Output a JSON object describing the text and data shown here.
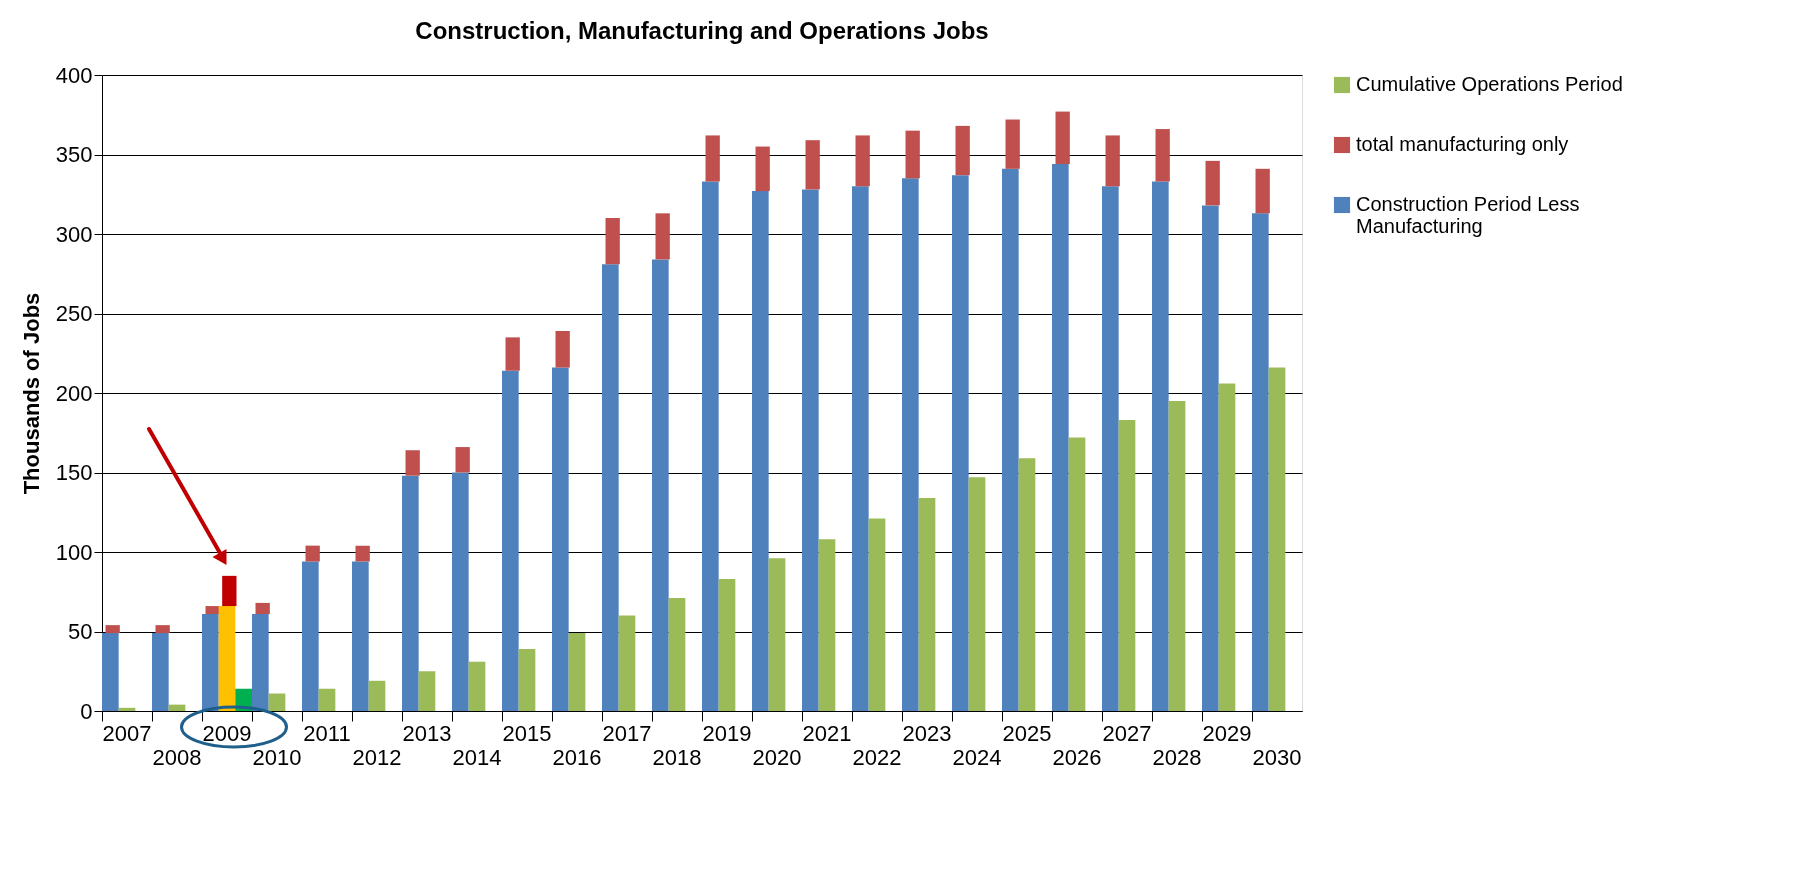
{
  "chart_data": {
    "type": "bar",
    "title": "Construction, Manufacturing and Operations Jobs",
    "ylabel": "Thousands of Jobs",
    "categories": [
      "2007",
      "2008",
      "2009",
      "2010",
      "2011",
      "2012",
      "2013",
      "2014",
      "2015",
      "2016",
      "2017",
      "2018",
      "2019",
      "2020",
      "2021",
      "2022",
      "2023",
      "2024",
      "2025",
      "2026",
      "2027",
      "2028",
      "2029",
      "2030"
    ],
    "series": [
      {
        "name": "Construction Period Less Manufacturing",
        "color": "#4f81bd",
        "values": [
          49,
          49,
          61,
          61,
          94,
          94,
          148,
          150,
          214,
          216,
          281,
          284,
          333,
          327,
          328,
          330,
          335,
          337,
          341,
          344,
          330,
          333,
          318,
          313
        ]
      },
      {
        "name": "total manufacturing only",
        "color": "#c0504d",
        "base": [
          49,
          49,
          61,
          61,
          94,
          94,
          148,
          150,
          214,
          216,
          281,
          284,
          333,
          327,
          328,
          330,
          335,
          337,
          341,
          344,
          330,
          333,
          318,
          313
        ],
        "values": [
          5,
          5,
          5,
          7,
          10,
          10,
          16,
          16,
          21,
          23,
          29,
          29,
          29,
          28,
          31,
          32,
          30,
          31,
          31,
          33,
          32,
          33,
          28,
          28
        ]
      },
      {
        "name": "Cumulative Operations Period",
        "color": "#9bbb59",
        "values": [
          2,
          4,
          null,
          11,
          14,
          19,
          25,
          31,
          39,
          49,
          60,
          71,
          83,
          96,
          108,
          121,
          134,
          147,
          159,
          172,
          183,
          195,
          206,
          216
        ]
      },
      {
        "color": "#ffc000",
        "values": [
          null,
          null,
          66,
          null,
          null,
          null,
          null,
          null,
          null,
          null,
          null,
          null,
          null,
          null,
          null,
          null,
          null,
          null,
          null,
          null,
          null,
          null,
          null,
          null
        ]
      },
      {
        "color": "#c00000",
        "base": [
          null,
          null,
          66,
          null,
          null,
          null,
          null,
          null,
          null,
          null,
          null,
          null,
          null,
          null,
          null,
          null,
          null,
          null,
          null,
          null,
          null,
          null,
          null,
          null
        ],
        "values": [
          null,
          null,
          19,
          null,
          null,
          null,
          null,
          null,
          null,
          null,
          null,
          null,
          null,
          null,
          null,
          null,
          null,
          null,
          null,
          null,
          null,
          null,
          null,
          null
        ]
      },
      {
        "color": "#00b050",
        "values": [
          null,
          null,
          14,
          null,
          null,
          null,
          null,
          null,
          null,
          null,
          null,
          null,
          null,
          null,
          null,
          null,
          null,
          null,
          null,
          null,
          null,
          null,
          null,
          null
        ]
      }
    ],
    "ylim": [
      0,
      400
    ],
    "yticks": [
      0,
      50,
      100,
      150,
      200,
      250,
      300,
      350,
      400
    ],
    "grid": "y",
    "legend": "top right"
  }
}
